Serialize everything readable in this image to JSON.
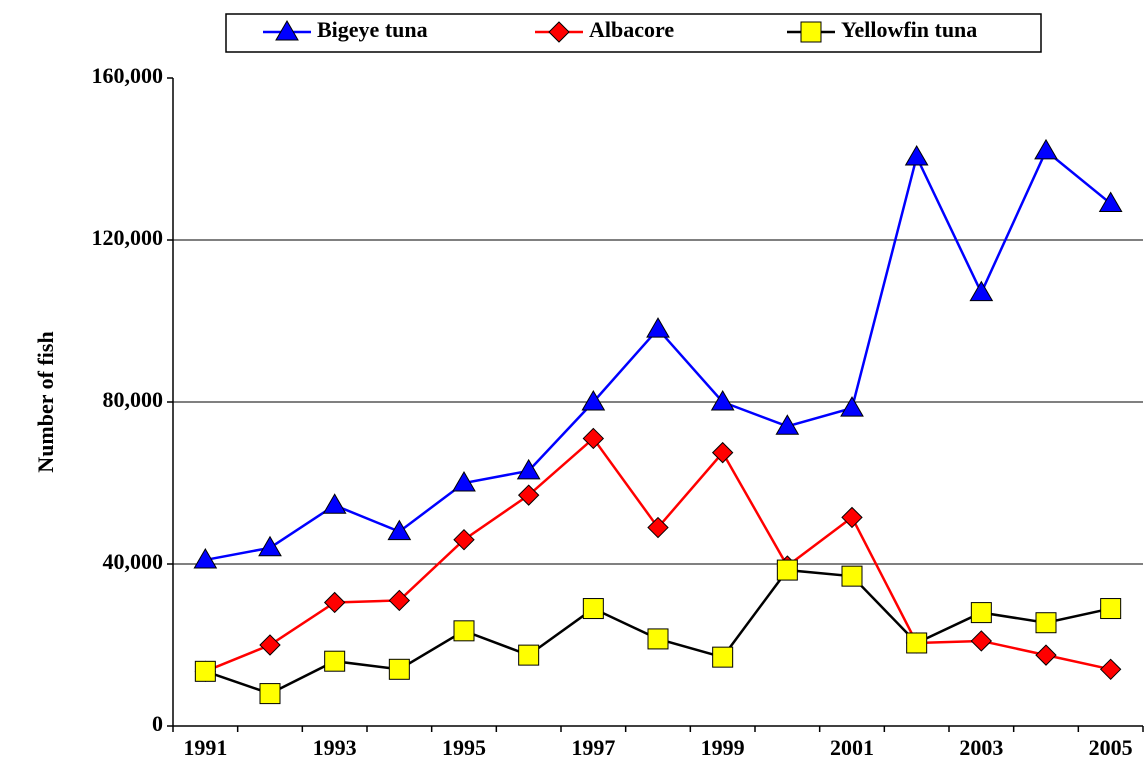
{
  "chart_data": {
    "type": "line",
    "y_label": "Number of fish",
    "categories": [
      "1991",
      null,
      "1993",
      null,
      "1995",
      null,
      "1997",
      null,
      "1999",
      null,
      "2001",
      null,
      "2003",
      null,
      "2005"
    ],
    "series": [
      {
        "name": "Bigeye tuna",
        "color": "#0000ff",
        "marker": "triangle",
        "marker_color": "#0000ff",
        "values": [
          41000,
          44000,
          54500,
          48000,
          60000,
          63000,
          80000,
          98000,
          80000,
          74000,
          78500,
          140500,
          107000,
          142000,
          129000
        ]
      },
      {
        "name": "Albacore",
        "color": "#ff0000",
        "marker": "diamond",
        "marker_color": "#ff0000",
        "values": [
          13500,
          20000,
          30500,
          31000,
          46000,
          57000,
          71000,
          49000,
          67500,
          39500,
          51500,
          20500,
          21000,
          17500,
          14000
        ]
      },
      {
        "name": "Yellowfin tuna",
        "color": "#000000",
        "marker": "square",
        "marker_color": "#ffff00",
        "values": [
          13500,
          8000,
          16000,
          14000,
          23500,
          17500,
          29000,
          21500,
          17000,
          38500,
          37000,
          20500,
          28000,
          25500,
          29000
        ]
      }
    ],
    "ylim": [
      0,
      160000
    ],
    "yticks": [
      0,
      {
        "value": 40000,
        "label": "40,000"
      },
      {
        "value": 80000,
        "label": "80,000"
      },
      {
        "value": 120000,
        "label": "120,000"
      },
      {
        "value": 160000,
        "label": "160,000"
      }
    ],
    "grid": true,
    "legend": "top"
  }
}
